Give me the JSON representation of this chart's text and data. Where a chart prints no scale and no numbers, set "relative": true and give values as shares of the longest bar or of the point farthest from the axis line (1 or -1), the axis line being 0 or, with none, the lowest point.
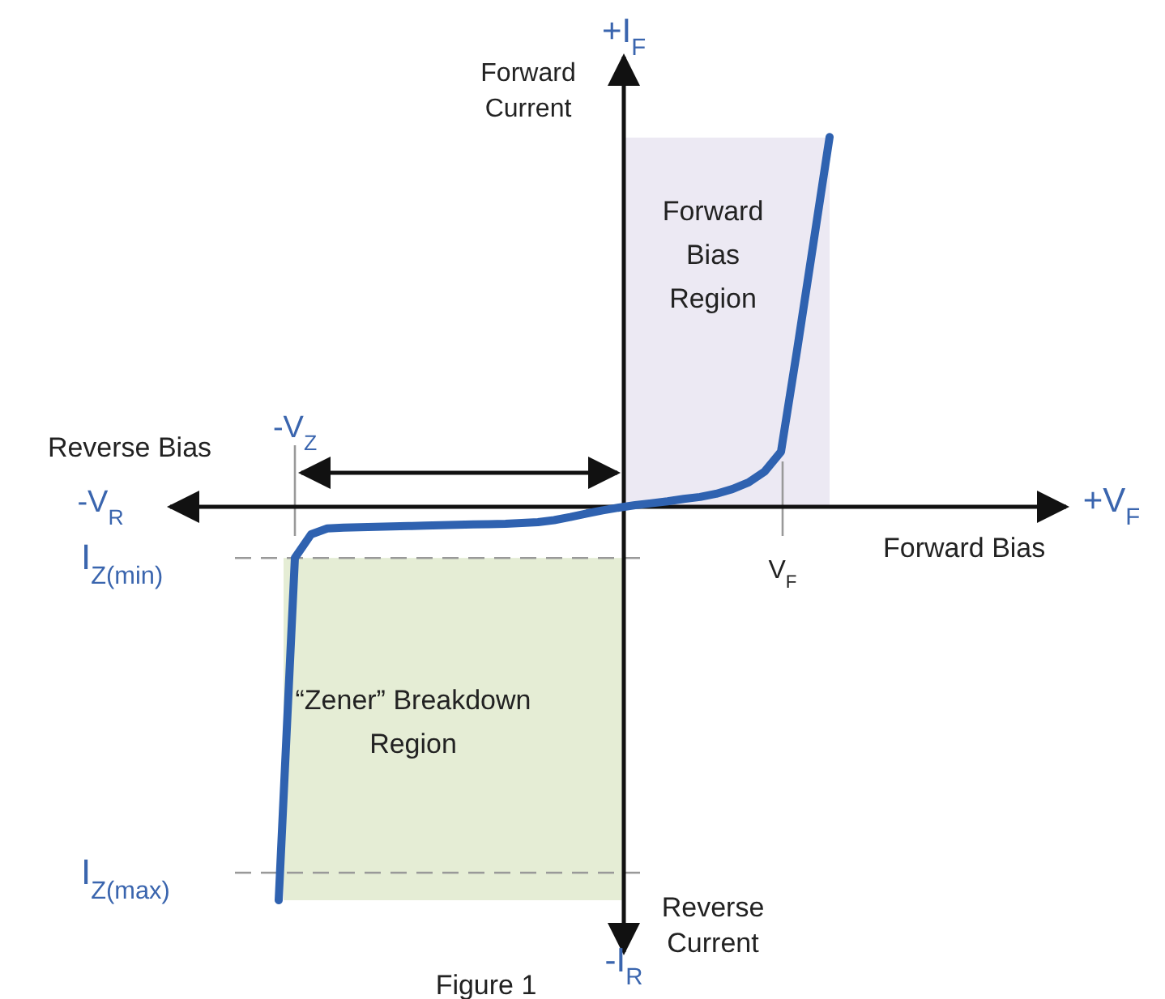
{
  "chart_data": {
    "type": "line",
    "relative": true,
    "xlabel": "Forward Bias",
    "ylabel": "Forward\nCurrent",
    "categories": [
      null,
      null,
      null,
      null,
      null,
      null,
      null,
      null,
      null,
      null,
      null,
      null,
      null,
      null,
      null,
      null,
      null,
      null,
      null,
      null,
      null,
      null,
      null,
      null,
      null,
      null,
      null,
      null,
      null,
      null,
      null,
      null,
      null,
      null,
      null
    ],
    "series": [
      {
        "color": "#2f62b0",
        "values": [
          -1,
          -0.13,
          -0.07,
          -0.055,
          -0.053,
          -0.052,
          -0.051,
          -0.05,
          -0.049,
          -0.048,
          -0.047,
          -0.046,
          -0.045,
          -0.044,
          -0.043,
          -0.041,
          -0.039,
          -0.034,
          -0.026,
          -0.017,
          -0.009,
          -0.002,
          0.004,
          0.009,
          0.014,
          0.02,
          0.025,
          0.033,
          0.045,
          0.062,
          0.09,
          0.14,
          0.4,
          0.67,
          0.94
        ]
      }
    ],
    "ref_lines": [
      {
        "axis": "y",
        "value": -0.13,
        "label": "I$_{Z(min)}$",
        "color": "#999999",
        "line_style": "dashed"
      },
      {
        "axis": "y",
        "value": -0.93,
        "label": "I$_{Z(max)}$",
        "color": "#999999",
        "line_style": "dashed"
      }
    ],
    "bands": [
      {
        "axis": "y",
        "from": -1,
        "to": -0.13,
        "label": "“Zener” Breakdown\nRegion",
        "color": "#e5edd5"
      }
    ],
    "annotations": [
      "+I$_{F}$",
      "-I$_{R}$",
      "+V$_{F}$",
      "-V$_{R}$",
      "Reverse Bias",
      "Reverse\nCurrent",
      "Forward\nBias\nRegion",
      "V$_{F}$",
      "-V$_{Z}$",
      "Figure 1"
    ],
    "grid": false,
    "marker": "none",
    "line_style": "solid"
  }
}
